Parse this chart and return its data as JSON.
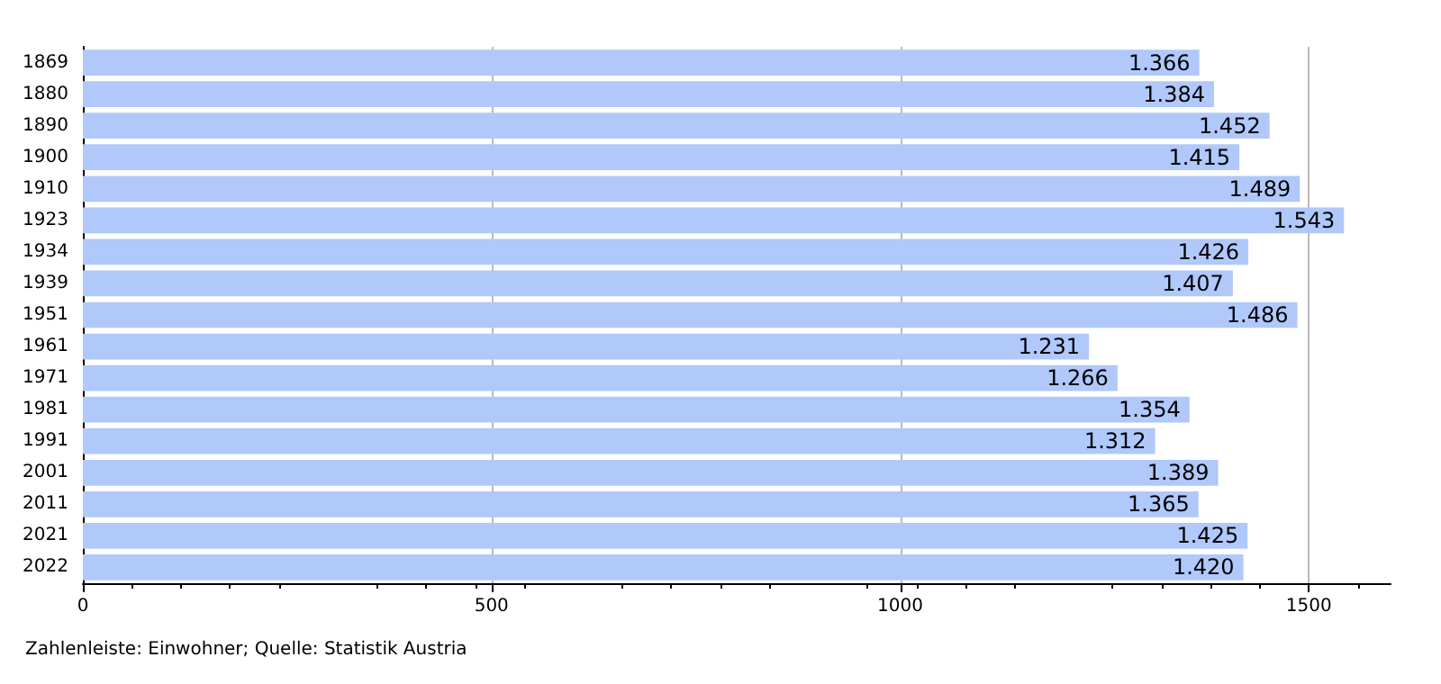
{
  "chart_data": {
    "type": "bar",
    "orientation": "horizontal",
    "categories": [
      "1869",
      "1880",
      "1890",
      "1900",
      "1910",
      "1923",
      "1934",
      "1939",
      "1951",
      "1961",
      "1971",
      "1981",
      "1991",
      "2001",
      "2011",
      "2021",
      "2022"
    ],
    "values": [
      1366,
      1384,
      1452,
      1415,
      1489,
      1543,
      1426,
      1407,
      1486,
      1231,
      1266,
      1354,
      1312,
      1389,
      1365,
      1425,
      1420
    ],
    "value_labels": [
      "1.366",
      "1.384",
      "1.452",
      "1.415",
      "1.489",
      "1.543",
      "1.426",
      "1.407",
      "1.486",
      "1.231",
      "1.266",
      "1.354",
      "1.312",
      "1.389",
      "1.365",
      "1.425",
      "1.420"
    ],
    "color": "#b0c8fa",
    "xlim": [
      0,
      1600
    ],
    "xticks": [
      0,
      500,
      1000,
      1500
    ],
    "grid": "x",
    "annotations": [
      "Zahlenleiste: Einwohner; Quelle: Statistik Austria"
    ]
  }
}
